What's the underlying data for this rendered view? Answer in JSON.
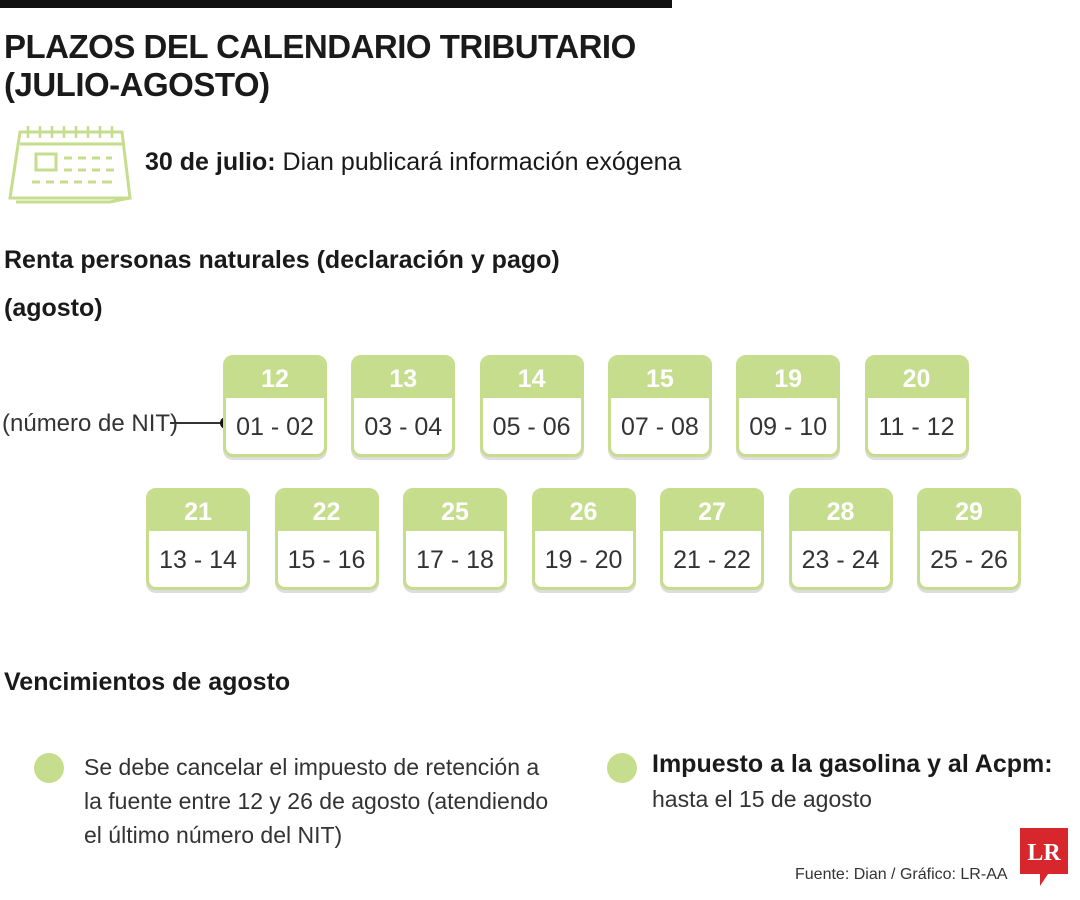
{
  "header": {
    "title_line1": "PLAZOS DEL CALENDARIO TRIBUTARIO",
    "title_line2": "(JULIO-AGOSTO)"
  },
  "notice": {
    "date": "30 de julio:",
    "text": "Dian publicará información exógena"
  },
  "renta": {
    "heading": "Renta personas naturales (declaración y pago)",
    "subheading": "(agosto)",
    "connector_label": "(número de NIT)",
    "cards": [
      {
        "day": "12",
        "nit": "01 - 02"
      },
      {
        "day": "13",
        "nit": "03 - 04"
      },
      {
        "day": "14",
        "nit": "05 - 06"
      },
      {
        "day": "15",
        "nit": "07 - 08"
      },
      {
        "day": "19",
        "nit": "09 - 10"
      },
      {
        "day": "20",
        "nit": "11 - 12"
      },
      {
        "day": "21",
        "nit": "13 - 14"
      },
      {
        "day": "22",
        "nit": "15 - 16"
      },
      {
        "day": "25",
        "nit": "17 - 18"
      },
      {
        "day": "26",
        "nit": "19 - 20"
      },
      {
        "day": "27",
        "nit": "21 - 22"
      },
      {
        "day": "28",
        "nit": "23 - 24"
      },
      {
        "day": "29",
        "nit": "25 - 26"
      }
    ]
  },
  "vencimientos": {
    "heading": "Vencimientos de agosto",
    "items": [
      {
        "text": "Se debe cancelar el impuesto de retención a la fuente entre 12 y 26 de agosto (atendiendo el último número del NIT)"
      },
      {
        "title": "Impuesto a la gasolina y al Acpm:",
        "text": "hasta el 15 de agosto"
      }
    ]
  },
  "footer": {
    "source": "Fuente: Dian / Gráfico: LR-AA",
    "logo": "LR"
  }
}
